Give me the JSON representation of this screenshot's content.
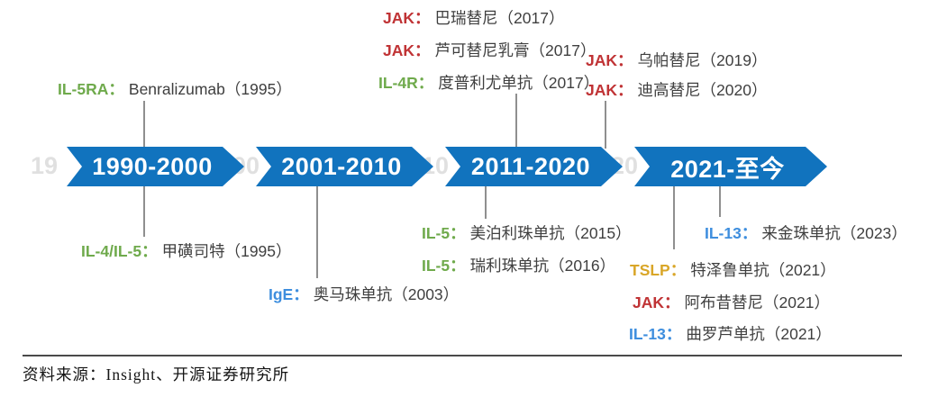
{
  "timeline": {
    "arrow_color": "#1173be",
    "ghost_color": "#d9d9d9",
    "periods": [
      {
        "label": "1990-2000",
        "ghost": "19"
      },
      {
        "label": "2001-2010",
        "ghost": "00"
      },
      {
        "label": "2011-2020",
        "ghost": "10"
      },
      {
        "label": "2021-至今",
        "ghost": "20"
      }
    ]
  },
  "colors": {
    "jak_red": "#c03335",
    "il_green": "#6faa4c",
    "ige_il13_blue": "#3e8ede",
    "tslp_gold": "#d9a628",
    "body_text": "#3f3f3f"
  },
  "labels": {
    "items": [
      {
        "prefix": "JAK：",
        "text": "巴瑞替尼（2017）",
        "target": "JAK",
        "position": "above"
      },
      {
        "prefix": "JAK：",
        "text": "芦可替尼乳膏（2017）",
        "target": "JAK",
        "position": "above"
      },
      {
        "prefix": "IL-4R：",
        "text": "度普利尤单抗（2017）",
        "target": "IL-4R",
        "position": "above"
      },
      {
        "prefix": "JAK：",
        "text": "乌帕替尼（2019）",
        "target": "JAK",
        "position": "above"
      },
      {
        "prefix": "JAK：",
        "text": "迪高替尼（2020）",
        "target": "JAK",
        "position": "above"
      },
      {
        "prefix": "IL-5RA：",
        "text": "Benralizumab（1995）",
        "target": "IL-5RA",
        "position": "above"
      },
      {
        "prefix": "IL-4/IL-5：",
        "text": "甲磺司特（1995）",
        "target": "IL-4/IL-5",
        "position": "below"
      },
      {
        "prefix": "IgE：",
        "text": "奥马珠单抗（2003）",
        "target": "IgE",
        "position": "below"
      },
      {
        "prefix": "IL-5：",
        "text": "美泊利珠单抗（2015）",
        "target": "IL-5",
        "position": "below"
      },
      {
        "prefix": "IL-5：",
        "text": "瑞利珠单抗（2016）",
        "target": "IL-5",
        "position": "below"
      },
      {
        "prefix": "IL-13：",
        "text": "来金珠单抗（2023）",
        "target": "IL-13",
        "position": "below"
      },
      {
        "prefix": "TSLP：",
        "text": "特泽鲁单抗（2021）",
        "target": "TSLP",
        "position": "below"
      },
      {
        "prefix": "JAK：",
        "text": "阿布昔替尼（2021）",
        "target": "JAK",
        "position": "below"
      },
      {
        "prefix": "IL-13：",
        "text": "曲罗芦单抗（2021）",
        "target": "IL-13",
        "position": "below"
      }
    ]
  },
  "footer": {
    "source": "资料来源：Insight、开源证券研究所"
  }
}
